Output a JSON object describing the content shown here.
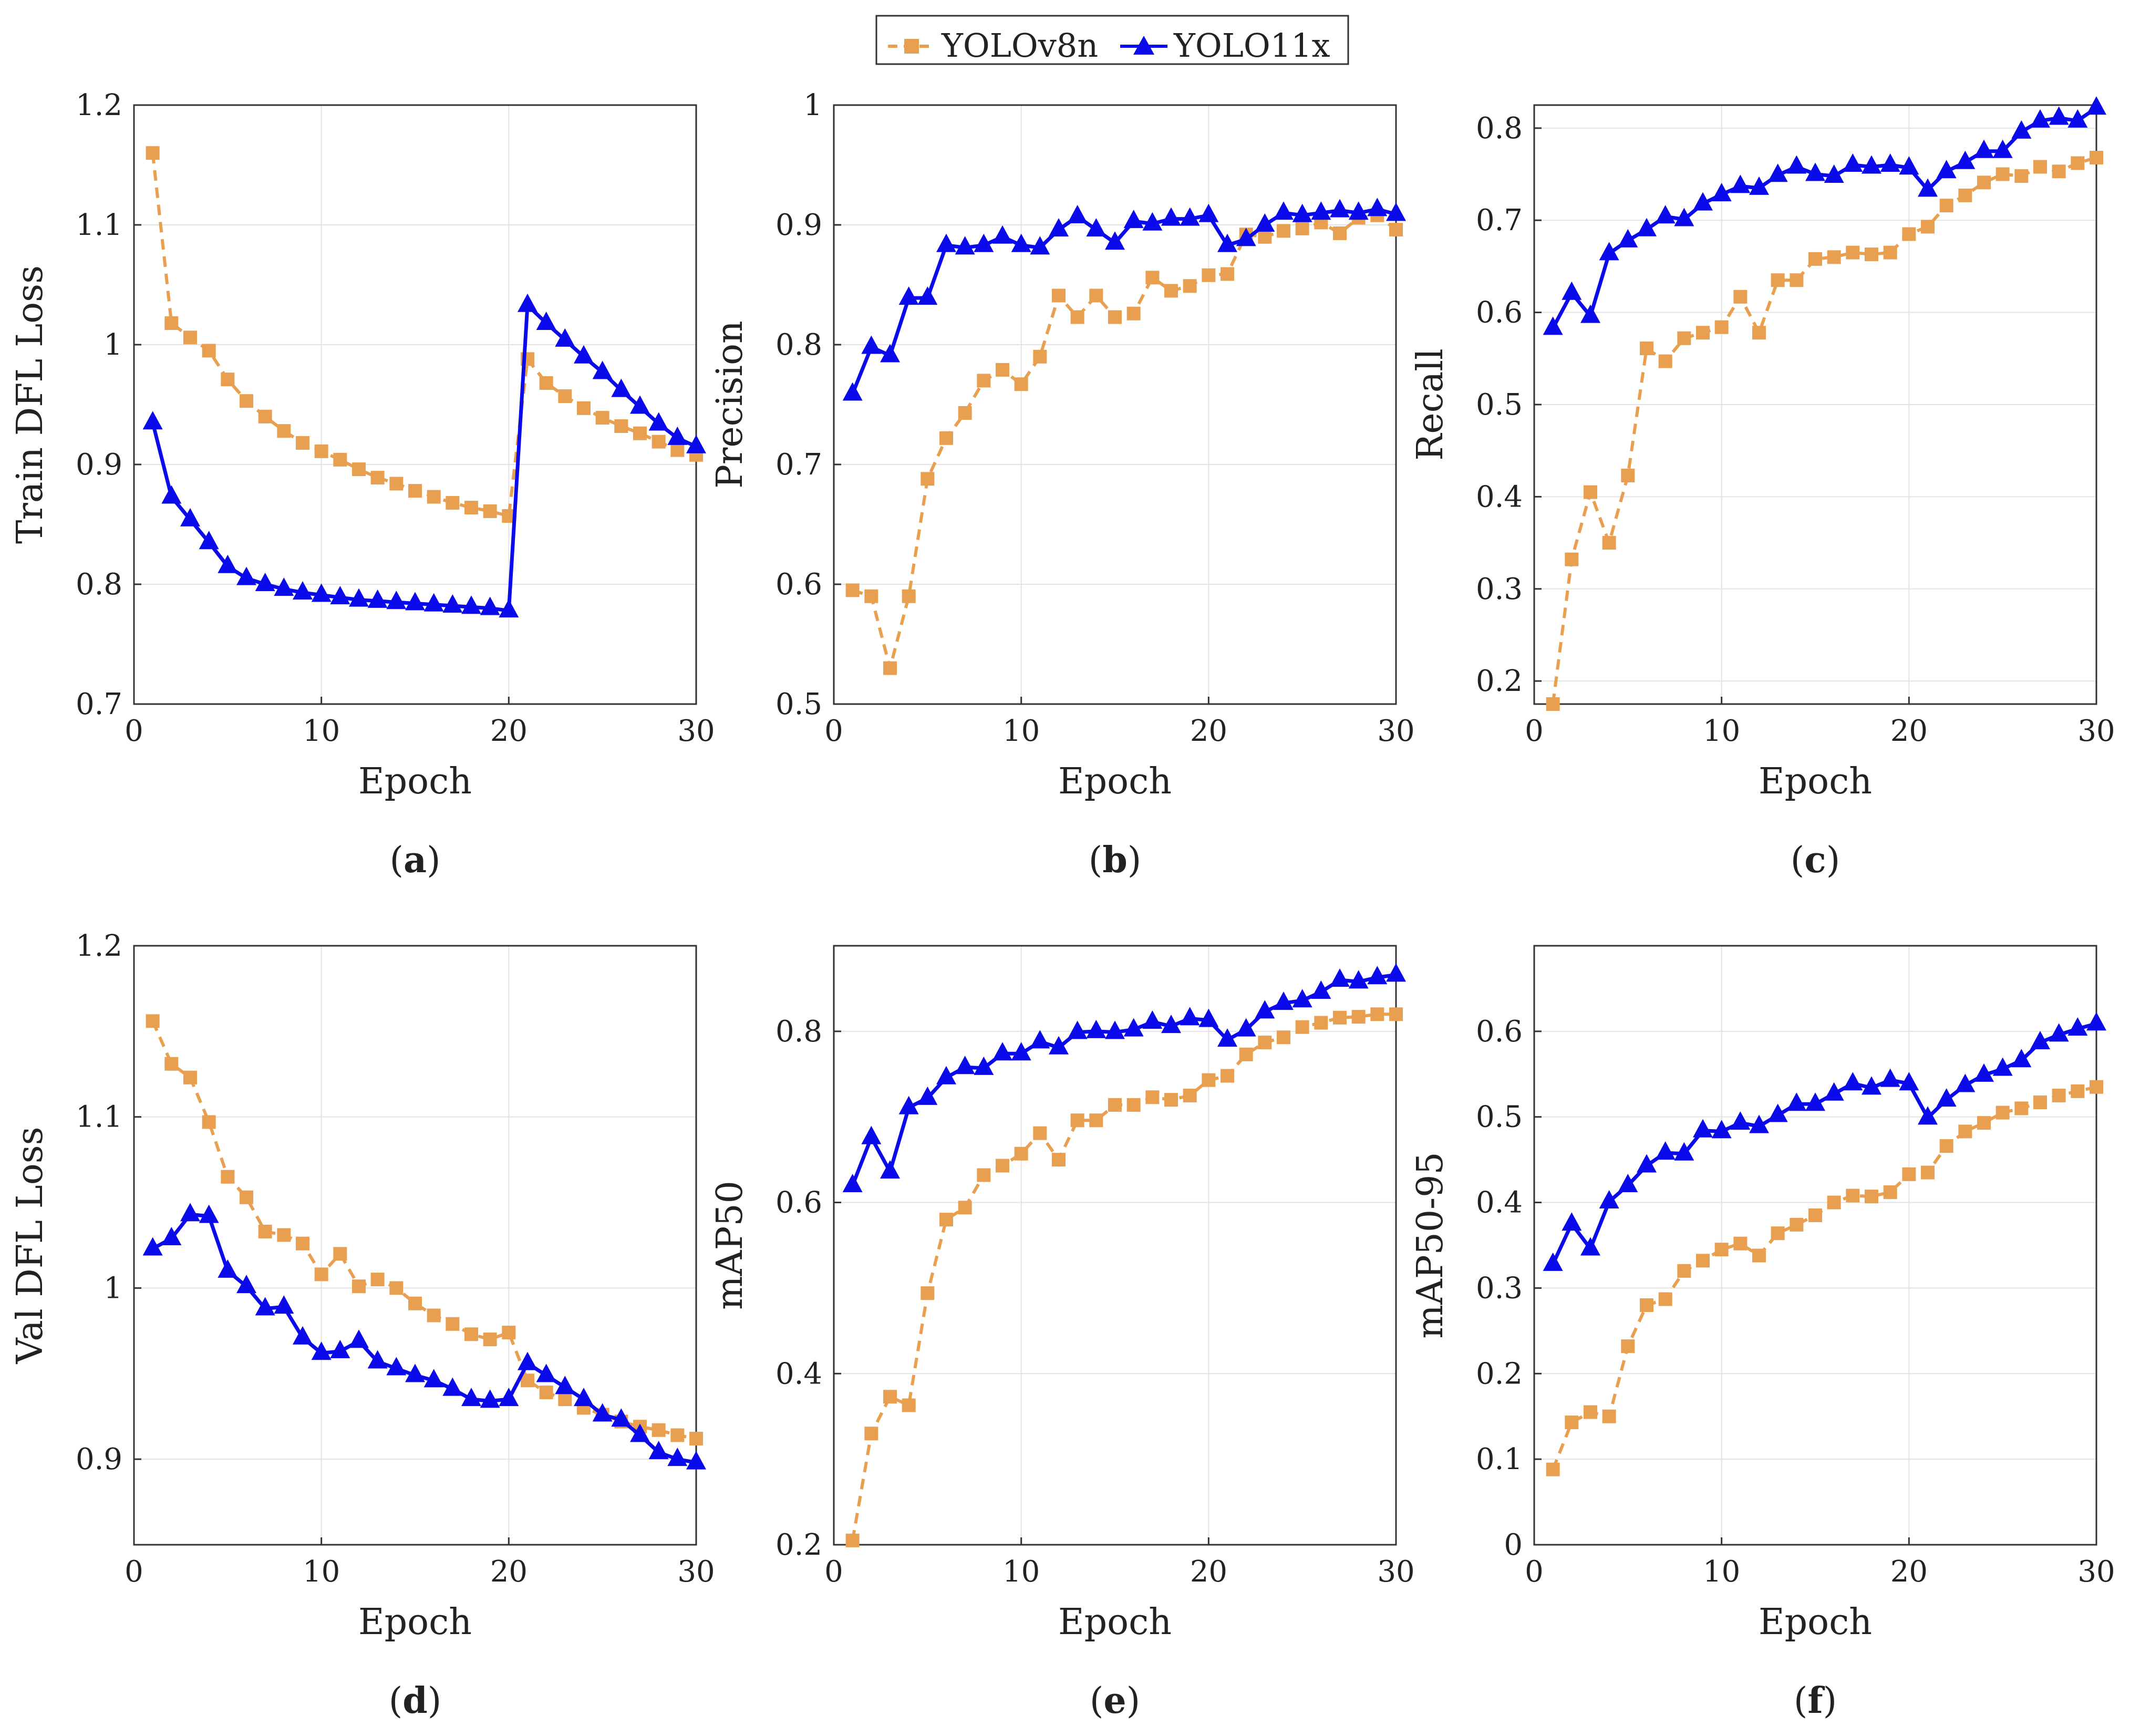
{
  "legend": {
    "series": [
      {
        "name": "YOLOv8n",
        "color": "#E8A050",
        "dash": true,
        "marker": "square"
      },
      {
        "name": "YOLO11x",
        "color": "#0A0AEB",
        "dash": false,
        "marker": "triangle"
      }
    ]
  },
  "chart_data": [
    {
      "type": "line",
      "panel_label": "a",
      "xlabel": "Epoch",
      "ylabel": "Train DFL Loss",
      "xlim": [
        0,
        30
      ],
      "ylim": [
        0.7,
        1.2
      ],
      "xticks": [
        0,
        10,
        20,
        30
      ],
      "yticks": [
        0.7,
        0.8,
        0.9,
        1,
        1.1,
        1.2
      ],
      "x": [
        1,
        2,
        3,
        4,
        5,
        6,
        7,
        8,
        9,
        10,
        11,
        12,
        13,
        14,
        15,
        16,
        17,
        18,
        19,
        20,
        21,
        22,
        23,
        24,
        25,
        26,
        27,
        28,
        29,
        30
      ],
      "series": [
        {
          "name": "YOLOv8n",
          "values": [
            1.16,
            1.018,
            1.006,
            0.995,
            0.971,
            0.953,
            0.94,
            0.928,
            0.918,
            0.911,
            0.904,
            0.896,
            0.889,
            0.884,
            0.878,
            0.873,
            0.868,
            0.864,
            0.861,
            0.857,
            0.988,
            0.968,
            0.957,
            0.947,
            0.939,
            0.932,
            0.926,
            0.919,
            0.912,
            0.908
          ]
        },
        {
          "name": "YOLO11x",
          "values": [
            0.935,
            0.873,
            0.854,
            0.835,
            0.815,
            0.805,
            0.8,
            0.796,
            0.793,
            0.791,
            0.789,
            0.787,
            0.786,
            0.785,
            0.784,
            0.783,
            0.782,
            0.781,
            0.78,
            0.778,
            1.033,
            1.018,
            1.004,
            0.99,
            0.977,
            0.962,
            0.948,
            0.934,
            0.922,
            0.915
          ]
        }
      ]
    },
    {
      "type": "line",
      "panel_label": "b",
      "xlabel": "Epoch",
      "ylabel": "Precision",
      "xlim": [
        0,
        30
      ],
      "ylim": [
        0.5,
        1.0
      ],
      "xticks": [
        0,
        10,
        20,
        30
      ],
      "yticks": [
        0.5,
        0.6,
        0.7,
        0.8,
        0.9,
        1
      ],
      "x": [
        1,
        2,
        3,
        4,
        5,
        6,
        7,
        8,
        9,
        10,
        11,
        12,
        13,
        14,
        15,
        16,
        17,
        18,
        19,
        20,
        21,
        22,
        23,
        24,
        25,
        26,
        27,
        28,
        29,
        30
      ],
      "series": [
        {
          "name": "YOLOv8n",
          "values": [
            0.595,
            0.59,
            0.53,
            0.59,
            0.688,
            0.722,
            0.743,
            0.77,
            0.779,
            0.767,
            0.79,
            0.841,
            0.823,
            0.841,
            0.823,
            0.826,
            0.856,
            0.845,
            0.849,
            0.858,
            0.859,
            0.892,
            0.89,
            0.895,
            0.897,
            0.902,
            0.893,
            0.906,
            0.908,
            0.896
          ]
        },
        {
          "name": "YOLO11x",
          "values": [
            0.759,
            0.798,
            0.791,
            0.839,
            0.839,
            0.883,
            0.881,
            0.883,
            0.89,
            0.883,
            0.881,
            0.896,
            0.907,
            0.896,
            0.885,
            0.903,
            0.901,
            0.905,
            0.905,
            0.908,
            0.883,
            0.888,
            0.9,
            0.91,
            0.908,
            0.91,
            0.912,
            0.91,
            0.913,
            0.909
          ]
        }
      ]
    },
    {
      "type": "line",
      "panel_label": "c",
      "xlabel": "Epoch",
      "ylabel": "Recall",
      "xlim": [
        0,
        30
      ],
      "ylim": [
        0.175,
        0.825
      ],
      "xticks": [
        0,
        10,
        20,
        30
      ],
      "yticks": [
        0.2,
        0.3,
        0.4,
        0.5,
        0.6,
        0.7,
        0.8
      ],
      "x": [
        1,
        2,
        3,
        4,
        5,
        6,
        7,
        8,
        9,
        10,
        11,
        12,
        13,
        14,
        15,
        16,
        17,
        18,
        19,
        20,
        21,
        22,
        23,
        24,
        25,
        26,
        27,
        28,
        29,
        30
      ],
      "series": [
        {
          "name": "YOLOv8n",
          "values": [
            0.175,
            0.332,
            0.405,
            0.35,
            0.423,
            0.561,
            0.547,
            0.572,
            0.578,
            0.584,
            0.617,
            0.578,
            0.635,
            0.635,
            0.658,
            0.66,
            0.665,
            0.663,
            0.665,
            0.685,
            0.693,
            0.716,
            0.727,
            0.741,
            0.75,
            0.748,
            0.758,
            0.753,
            0.762,
            0.768
          ]
        },
        {
          "name": "YOLO11x",
          "values": [
            0.583,
            0.621,
            0.596,
            0.664,
            0.678,
            0.69,
            0.704,
            0.701,
            0.718,
            0.728,
            0.737,
            0.735,
            0.749,
            0.758,
            0.75,
            0.748,
            0.76,
            0.758,
            0.76,
            0.757,
            0.733,
            0.753,
            0.763,
            0.775,
            0.775,
            0.796,
            0.808,
            0.811,
            0.808,
            0.822
          ]
        }
      ]
    },
    {
      "type": "line",
      "panel_label": "d",
      "xlabel": "Epoch",
      "ylabel": "Val DFL Loss",
      "xlim": [
        0,
        30
      ],
      "ylim": [
        0.85,
        1.2
      ],
      "xticks": [
        0,
        10,
        20,
        30
      ],
      "yticks": [
        0.9,
        1,
        1.1,
        1.2
      ],
      "x": [
        1,
        2,
        3,
        4,
        5,
        6,
        7,
        8,
        9,
        10,
        11,
        12,
        13,
        14,
        15,
        16,
        17,
        18,
        19,
        20,
        21,
        22,
        23,
        24,
        25,
        26,
        27,
        28,
        29,
        30
      ],
      "series": [
        {
          "name": "YOLOv8n",
          "values": [
            1.156,
            1.131,
            1.123,
            1.097,
            1.065,
            1.053,
            1.033,
            1.031,
            1.026,
            1.008,
            1.02,
            1.001,
            1.005,
            1.0,
            0.991,
            0.984,
            0.979,
            0.973,
            0.97,
            0.974,
            0.946,
            0.939,
            0.935,
            0.93,
            0.926,
            0.922,
            0.919,
            0.917,
            0.914,
            0.912
          ]
        },
        {
          "name": "YOLO11x",
          "values": [
            1.023,
            1.029,
            1.043,
            1.042,
            1.01,
            1.001,
            0.988,
            0.989,
            0.971,
            0.962,
            0.963,
            0.969,
            0.957,
            0.953,
            0.949,
            0.946,
            0.941,
            0.935,
            0.934,
            0.935,
            0.956,
            0.949,
            0.942,
            0.935,
            0.926,
            0.923,
            0.914,
            0.904,
            0.9,
            0.898
          ]
        }
      ]
    },
    {
      "type": "line",
      "panel_label": "e",
      "xlabel": "Epoch",
      "ylabel": "mAP50",
      "xlim": [
        0,
        30
      ],
      "ylim": [
        0.2,
        0.9
      ],
      "xticks": [
        0,
        10,
        20,
        30
      ],
      "yticks": [
        0.2,
        0.4,
        0.6,
        0.8
      ],
      "x": [
        1,
        2,
        3,
        4,
        5,
        6,
        7,
        8,
        9,
        10,
        11,
        12,
        13,
        14,
        15,
        16,
        17,
        18,
        19,
        20,
        21,
        22,
        23,
        24,
        25,
        26,
        27,
        28,
        29,
        30
      ],
      "series": [
        {
          "name": "YOLOv8n",
          "values": [
            0.205,
            0.33,
            0.373,
            0.363,
            0.494,
            0.58,
            0.594,
            0.632,
            0.643,
            0.657,
            0.681,
            0.65,
            0.696,
            0.696,
            0.714,
            0.714,
            0.723,
            0.72,
            0.725,
            0.743,
            0.748,
            0.773,
            0.787,
            0.793,
            0.805,
            0.81,
            0.816,
            0.817,
            0.82,
            0.82
          ]
        },
        {
          "name": "YOLO11x",
          "values": [
            0.62,
            0.676,
            0.636,
            0.711,
            0.722,
            0.746,
            0.758,
            0.757,
            0.774,
            0.774,
            0.788,
            0.781,
            0.799,
            0.8,
            0.799,
            0.802,
            0.811,
            0.806,
            0.815,
            0.813,
            0.79,
            0.802,
            0.823,
            0.833,
            0.836,
            0.846,
            0.86,
            0.858,
            0.863,
            0.866
          ]
        }
      ]
    },
    {
      "type": "line",
      "panel_label": "f",
      "xlabel": "Epoch",
      "ylabel": "mAP50-95",
      "xlim": [
        0,
        30
      ],
      "ylim": [
        0,
        0.7
      ],
      "xticks": [
        0,
        10,
        20,
        30
      ],
      "yticks": [
        0,
        0.1,
        0.2,
        0.3,
        0.4,
        0.5,
        0.6
      ],
      "x": [
        1,
        2,
        3,
        4,
        5,
        6,
        7,
        8,
        9,
        10,
        11,
        12,
        13,
        14,
        15,
        16,
        17,
        18,
        19,
        20,
        21,
        22,
        23,
        24,
        25,
        26,
        27,
        28,
        29,
        30
      ],
      "series": [
        {
          "name": "YOLOv8n",
          "values": [
            0.088,
            0.143,
            0.155,
            0.15,
            0.232,
            0.28,
            0.287,
            0.32,
            0.332,
            0.345,
            0.352,
            0.338,
            0.364,
            0.374,
            0.385,
            0.4,
            0.408,
            0.407,
            0.412,
            0.433,
            0.435,
            0.466,
            0.483,
            0.493,
            0.505,
            0.51,
            0.517,
            0.525,
            0.53,
            0.535
          ]
        },
        {
          "name": "YOLO11x",
          "values": [
            0.328,
            0.375,
            0.346,
            0.401,
            0.42,
            0.443,
            0.458,
            0.457,
            0.484,
            0.483,
            0.493,
            0.489,
            0.502,
            0.515,
            0.515,
            0.527,
            0.539,
            0.534,
            0.543,
            0.539,
            0.499,
            0.52,
            0.537,
            0.549,
            0.556,
            0.566,
            0.587,
            0.596,
            0.603,
            0.609
          ]
        }
      ]
    }
  ]
}
